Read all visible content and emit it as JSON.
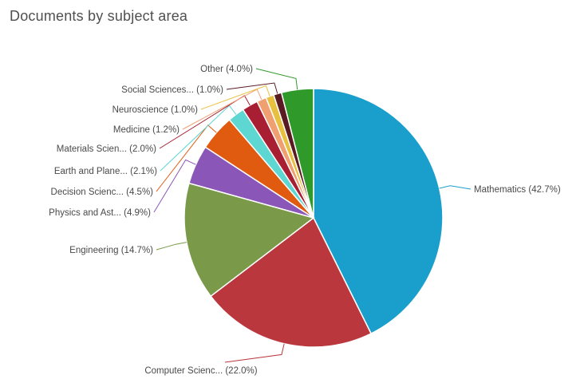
{
  "chart_data": {
    "type": "pie",
    "title": "Documents by subject area",
    "slices": [
      {
        "label": "Mathematics (42.7%)",
        "value": 42.7,
        "color": "#1a9fcc"
      },
      {
        "label": "Computer Scienc... (22.0%)",
        "value": 22.0,
        "color": "#b9373d"
      },
      {
        "label": "Engineering (14.7%)",
        "value": 14.7,
        "color": "#7a9a4a"
      },
      {
        "label": "Physics and Ast... (4.9%)",
        "value": 4.9,
        "color": "#8a56b8"
      },
      {
        "label": "Decision Scienc... (4.5%)",
        "value": 4.5,
        "color": "#e05a10"
      },
      {
        "label": "Earth and Plane... (2.1%)",
        "value": 2.1,
        "color": "#5ed6d2"
      },
      {
        "label": "Materials Scien... (2.0%)",
        "value": 2.0,
        "color": "#a81e32"
      },
      {
        "label": "Medicine (1.2%)",
        "value": 1.2,
        "color": "#f0a070"
      },
      {
        "label": "Neuroscience (1.0%)",
        "value": 1.0,
        "color": "#e8c040"
      },
      {
        "label": "Social Sciences... (1.0%)",
        "value": 1.0,
        "color": "#5a1a22"
      },
      {
        "label": "Other (4.0%)",
        "value": 4.0,
        "color": "#2f9a2a"
      }
    ]
  }
}
